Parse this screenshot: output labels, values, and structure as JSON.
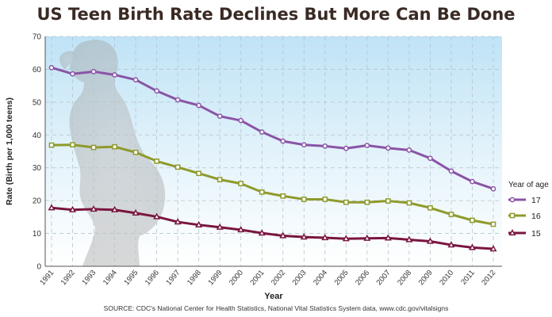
{
  "title": "US Teen Birth Rate Declines But More Can Be Done",
  "source": "SOURCE: CDC's National Center for Health Statistics, National Vital Statistics System data, www.cdc.gov/vitalsigns",
  "chart_data": {
    "type": "line",
    "title": "US Teen Birth Rate Declines But More Can Be Done",
    "xlabel": "Year",
    "ylabel": "Rate (Birth per 1,000 teens)",
    "categories": [
      "1991",
      "1992",
      "1993",
      "1994",
      "1995",
      "1996",
      "1997",
      "1998",
      "1999",
      "2000",
      "2001",
      "2002",
      "2003",
      "2004",
      "2005",
      "2006",
      "2007",
      "2008",
      "2009",
      "2010",
      "2011",
      "2012"
    ],
    "ylim": [
      0,
      70
    ],
    "yticks": [
      0,
      10,
      20,
      30,
      40,
      50,
      60,
      70
    ],
    "grid": true,
    "legend": {
      "title": "Year of age",
      "placement": "right"
    },
    "series": [
      {
        "name": "17",
        "color": "#8a54a6",
        "marker": "circle",
        "values": [
          60.5,
          58.6,
          59.3,
          58.3,
          56.8,
          53.4,
          50.7,
          49.0,
          45.7,
          44.4,
          40.9,
          38.1,
          37.0,
          36.6,
          35.9,
          36.8,
          36.0,
          35.4,
          32.9,
          29.0,
          25.8,
          23.6
        ]
      },
      {
        "name": "16",
        "color": "#8f9a2c",
        "marker": "square",
        "values": [
          36.9,
          37.0,
          36.2,
          36.4,
          34.7,
          32.0,
          30.2,
          28.3,
          26.4,
          25.2,
          22.6,
          21.4,
          20.4,
          20.4,
          19.5,
          19.5,
          19.9,
          19.3,
          17.8,
          15.8,
          14.0,
          12.8
        ]
      },
      {
        "name": "15",
        "color": "#7a1540",
        "marker": "triangle",
        "values": [
          17.8,
          17.2,
          17.4,
          17.2,
          16.2,
          15.1,
          13.5,
          12.6,
          11.9,
          11.1,
          10.1,
          9.3,
          8.9,
          8.7,
          8.4,
          8.5,
          8.6,
          8.1,
          7.6,
          6.5,
          5.7,
          5.3
        ]
      }
    ]
  }
}
